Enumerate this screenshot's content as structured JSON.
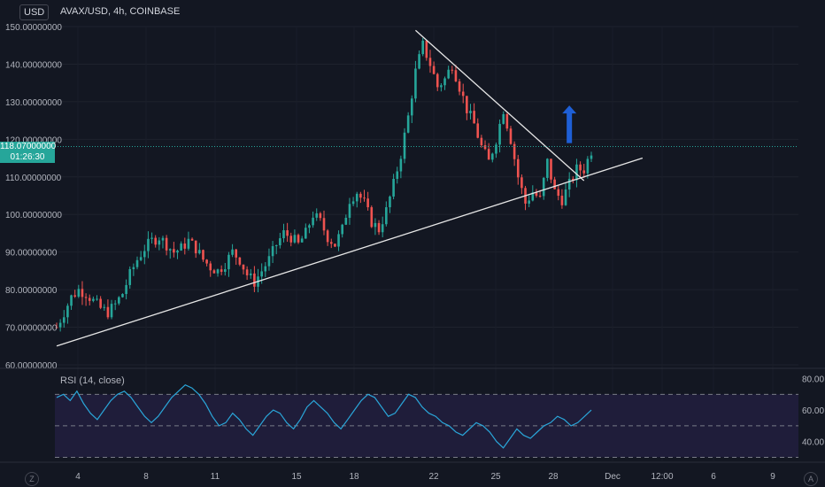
{
  "header": {
    "currency_badge": "USD",
    "symbol_legend": "AVAX/USD, 4h, COINBASE"
  },
  "price_tag": {
    "price": "118.07000000",
    "countdown": "01:26:30"
  },
  "rsi": {
    "label": "RSI (14, close)"
  },
  "corners": {
    "left": "Z",
    "right": "A"
  },
  "colors": {
    "bg": "#131722",
    "up": "#26a69a",
    "down": "#ef5350",
    "rsi_line": "#2aa6d9",
    "rsi_band": "#1f1d3a",
    "trendline": "#e6e6e6",
    "arrow": "#1e5fd6"
  },
  "chart_data": [
    {
      "type": "candlestick",
      "title": "AVAX/USD, 4h, COINBASE",
      "y_axis_ticks": [
        "150.00000000",
        "140.00000000",
        "130.00000000",
        "120.00000000",
        "110.00000000",
        "100.00000000",
        "90.00000000",
        "80.00000000",
        "70.00000000",
        "60.00000000"
      ],
      "ylim": [
        60,
        150
      ],
      "x_axis_ticks": [
        "4",
        "8",
        "11",
        "15",
        "18",
        "22",
        "25",
        "28",
        "Dec",
        "12:00",
        "6",
        "9"
      ],
      "close_points": [
        [
          0,
          70
        ],
        [
          2,
          74
        ],
        [
          4,
          78
        ],
        [
          6,
          80
        ],
        [
          8,
          79
        ],
        [
          10,
          77
        ],
        [
          12,
          75
        ],
        [
          14,
          74
        ],
        [
          16,
          76
        ],
        [
          18,
          79
        ],
        [
          20,
          84
        ],
        [
          22,
          88
        ],
        [
          24,
          91
        ],
        [
          26,
          93
        ],
        [
          28,
          94
        ],
        [
          30,
          92
        ],
        [
          32,
          90
        ],
        [
          34,
          91
        ],
        [
          36,
          93
        ],
        [
          38,
          91
        ],
        [
          40,
          88
        ],
        [
          42,
          86
        ],
        [
          44,
          85
        ],
        [
          46,
          87
        ],
        [
          48,
          90
        ],
        [
          50,
          88
        ],
        [
          52,
          84
        ],
        [
          54,
          82
        ],
        [
          56,
          85
        ],
        [
          58,
          88
        ],
        [
          60,
          92
        ],
        [
          62,
          95
        ],
        [
          64,
          94
        ],
        [
          66,
          92
        ],
        [
          68,
          95
        ],
        [
          70,
          100
        ],
        [
          72,
          98
        ],
        [
          74,
          94
        ],
        [
          76,
          92
        ],
        [
          78,
          96
        ],
        [
          80,
          104
        ],
        [
          82,
          106
        ],
        [
          84,
          103
        ],
        [
          86,
          98
        ],
        [
          88,
          96
        ],
        [
          90,
          101
        ],
        [
          92,
          108
        ],
        [
          94,
          116
        ],
        [
          96,
          126
        ],
        [
          98,
          138
        ],
        [
          100,
          145
        ],
        [
          102,
          140
        ],
        [
          104,
          134
        ],
        [
          106,
          136
        ],
        [
          108,
          140
        ],
        [
          110,
          134
        ],
        [
          112,
          128
        ],
        [
          114,
          124
        ],
        [
          116,
          118
        ],
        [
          118,
          114
        ],
        [
          120,
          120
        ],
        [
          122,
          128
        ],
        [
          124,
          120
        ],
        [
          126,
          110
        ],
        [
          128,
          103
        ],
        [
          130,
          106
        ],
        [
          132,
          104
        ],
        [
          134,
          114
        ],
        [
          136,
          106
        ],
        [
          138,
          104
        ],
        [
          140,
          108
        ],
        [
          142,
          112
        ],
        [
          144,
          112
        ],
        [
          146,
          117
        ]
      ],
      "price_line": 118.07,
      "trendlines": [
        {
          "name": "support",
          "from": [
            0,
            65
          ],
          "to": [
            160,
            115
          ]
        },
        {
          "name": "resistance",
          "from": [
            98,
            149
          ],
          "to": [
            144,
            109
          ]
        }
      ],
      "arrow": {
        "x": 140,
        "from": 119,
        "to": 129,
        "direction": "up"
      }
    },
    {
      "type": "line",
      "name": "RSI (14, close)",
      "y_axis_ticks": [
        "80.00",
        "60.00",
        "40.00"
      ],
      "ylim": [
        28,
        82
      ],
      "band": [
        30,
        70
      ],
      "midline": 50,
      "values": [
        68,
        70,
        66,
        72,
        64,
        58,
        54,
        60,
        66,
        70,
        72,
        68,
        62,
        56,
        52,
        56,
        62,
        68,
        72,
        76,
        74,
        70,
        64,
        56,
        50,
        52,
        58,
        54,
        48,
        44,
        50,
        56,
        60,
        58,
        52,
        48,
        54,
        62,
        66,
        62,
        58,
        52,
        48,
        54,
        60,
        66,
        70,
        68,
        62,
        56,
        58,
        64,
        70,
        68,
        62,
        58,
        56,
        52,
        50,
        46,
        44,
        48,
        52,
        50,
        46,
        40,
        36,
        42,
        48,
        44,
        42,
        46,
        50,
        52,
        56,
        54,
        50,
        52,
        56,
        60
      ]
    }
  ]
}
